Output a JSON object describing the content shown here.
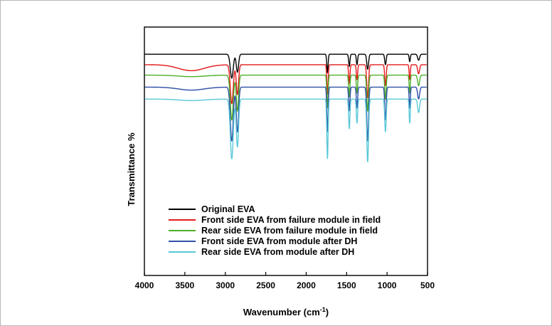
{
  "chart_data": {
    "type": "line",
    "title": "",
    "xlabel_main": "Wavenumber (cm",
    "xlabel_sup": "-1",
    "xlabel_close": ")",
    "ylabel": "Transmittance %",
    "xlim": [
      4000,
      500
    ],
    "x_reversed": true,
    "y_ticks_shown": false,
    "xticks": [
      4000,
      3500,
      3000,
      2500,
      2000,
      1500,
      1000,
      500
    ],
    "legend_position": "lower-left",
    "peaks": [
      {
        "x": 2920,
        "w": 18
      },
      {
        "x": 2850,
        "w": 14
      },
      {
        "x": 1737,
        "w": 8
      },
      {
        "x": 1467,
        "w": 8
      },
      {
        "x": 1372,
        "w": 8
      },
      {
        "x": 1240,
        "w": 11
      },
      {
        "x": 1020,
        "w": 9
      },
      {
        "x": 720,
        "w": 7
      },
      {
        "x": 610,
        "w": 12
      }
    ],
    "series": [
      {
        "name": "Original EVA",
        "color": "#000000",
        "baseline": 98,
        "depths": [
          16,
          12,
          12,
          8,
          7,
          10,
          7,
          5,
          4
        ],
        "oh_depth": 0
      },
      {
        "name": "Front side EVA from failure module in field",
        "color": "#e41a1c",
        "baseline": 91,
        "depths": [
          26,
          20,
          20,
          12,
          10,
          22,
          14,
          10,
          6
        ],
        "oh_depth": 4
      },
      {
        "name": "Rear side EVA from failure module in field",
        "color": "#4daf2a",
        "baseline": 84,
        "depths": [
          30,
          24,
          22,
          14,
          12,
          24,
          16,
          12,
          7
        ],
        "oh_depth": 1
      },
      {
        "name": "Front side EVA from module after DH",
        "color": "#3050a8",
        "baseline": 76,
        "depths": [
          36,
          30,
          30,
          16,
          14,
          36,
          22,
          14,
          8
        ],
        "oh_depth": 2
      },
      {
        "name": "Rear side EVA from module after DH",
        "color": "#5ac8d8",
        "baseline": 68,
        "depths": [
          40,
          32,
          40,
          20,
          16,
          42,
          22,
          16,
          9
        ],
        "oh_depth": 1
      }
    ]
  }
}
